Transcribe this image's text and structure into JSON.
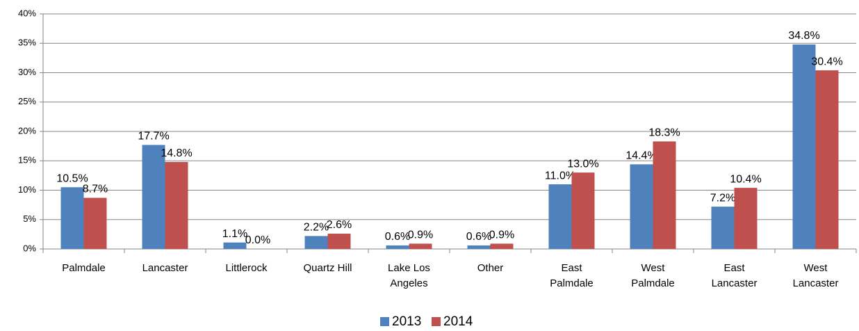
{
  "chart_data": {
    "type": "bar",
    "categories": [
      "Palmdale",
      "Lancaster",
      "Littlerock",
      "Quartz Hill",
      "Lake Los Angeles",
      "Other",
      "East Palmdale",
      "West Palmdale",
      "East Lancaster",
      "West Lancaster"
    ],
    "series": [
      {
        "name": "2013",
        "color": "#4f81bd",
        "values": [
          10.5,
          17.7,
          1.1,
          2.2,
          0.6,
          0.6,
          11.0,
          14.4,
          7.2,
          34.8
        ],
        "value_labels": [
          "10.5%",
          "17.7%",
          "1.1%",
          "2.2%",
          "0.6%",
          "0.6%",
          "11.0%",
          "14.4%",
          "7.2%",
          "34.8%"
        ]
      },
      {
        "name": "2014",
        "color": "#c0504d",
        "values": [
          8.7,
          14.8,
          0.0,
          2.6,
          0.9,
          0.9,
          13.0,
          18.3,
          10.4,
          30.4
        ],
        "value_labels": [
          "8.7%",
          "14.8%",
          "0.0%",
          "2.6%",
          "0.9%",
          "0.9%",
          "13.0%",
          "18.3%",
          "10.4%",
          "30.4%"
        ]
      }
    ],
    "ylim": [
      0,
      40
    ],
    "yticks": [
      {
        "value": 0,
        "label": "0%"
      },
      {
        "value": 5,
        "label": "5%"
      },
      {
        "value": 10,
        "label": "10%"
      },
      {
        "value": 15,
        "label": "15%"
      },
      {
        "value": 20,
        "label": "20%"
      },
      {
        "value": 25,
        "label": "25%"
      },
      {
        "value": 30,
        "label": "30%"
      },
      {
        "value": 35,
        "label": "35%"
      },
      {
        "value": 40,
        "label": "40%"
      }
    ],
    "grid": true,
    "legend": "bottom"
  }
}
